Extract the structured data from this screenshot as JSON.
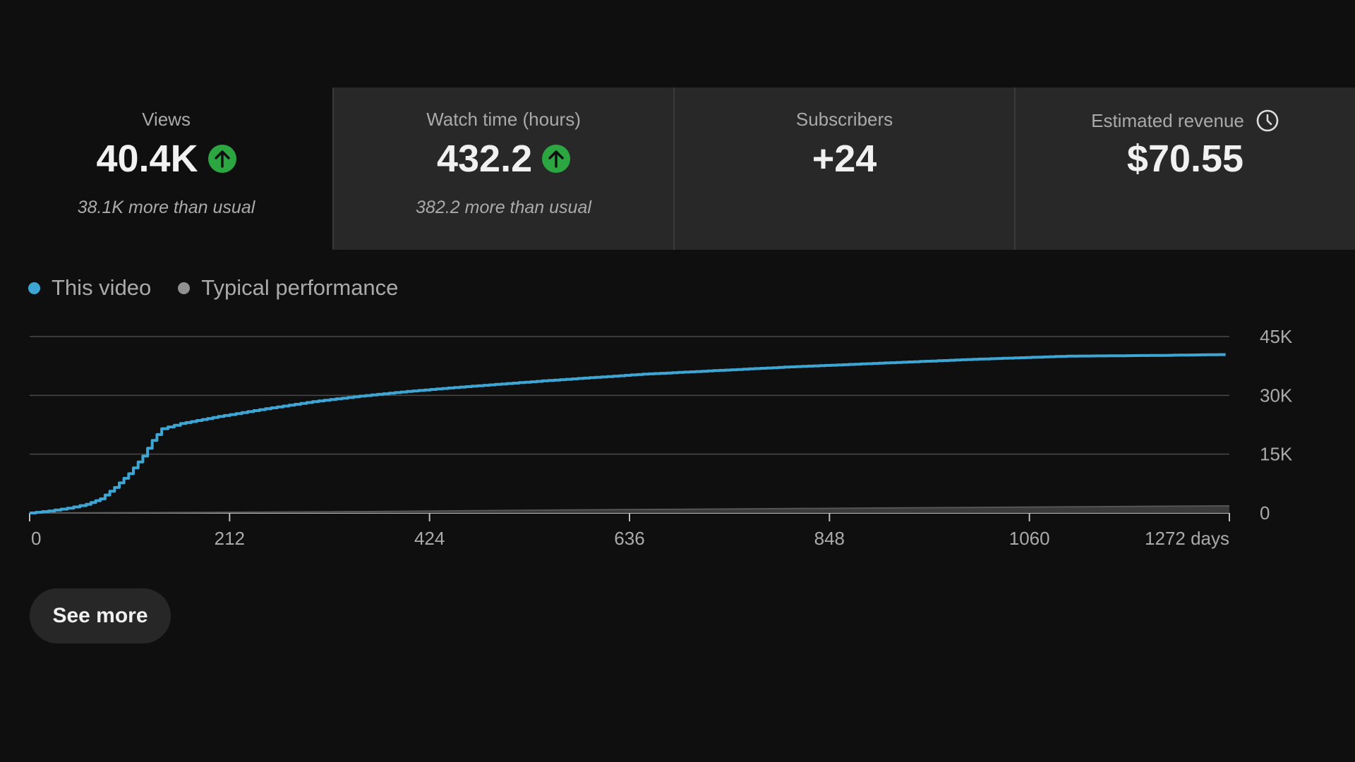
{
  "metrics": [
    {
      "label": "Views",
      "value": "40.4K",
      "note": "38.1K more than usual"
    },
    {
      "label": "Watch time (hours)",
      "value": "432.2",
      "note": "382.2 more than usual"
    },
    {
      "label": "Subscribers",
      "value": "+24",
      "note": ""
    },
    {
      "label": "Estimated revenue",
      "value": "$70.55",
      "note": ""
    }
  ],
  "icons": {
    "trend": "arrow-up-icon",
    "revenue": "clock-icon"
  },
  "colors": {
    "this_video": "#3ea6d4",
    "typical": "#909090",
    "up_badge": "#2ba640"
  },
  "legend": {
    "this_video": "This video",
    "typical": "Typical performance"
  },
  "see_more": "See more",
  "chart_data": {
    "type": "line",
    "x_tick_labels": [
      "0",
      "212",
      "424",
      "636",
      "848",
      "1060",
      "1272 days"
    ],
    "x_ticks": [
      0,
      212,
      424,
      636,
      848,
      1060,
      1272
    ],
    "y_tick_labels": [
      "0",
      "15K",
      "30K",
      "45K"
    ],
    "y_ticks": [
      0,
      15000,
      30000,
      45000
    ],
    "xlim": [
      0,
      1272
    ],
    "ylim": [
      0,
      45000
    ],
    "grid": true,
    "legend_position": "top-left",
    "series": [
      {
        "name": "This video",
        "x": [
          0,
          20,
          40,
          60,
          75,
          90,
          105,
          120,
          130,
          140,
          160,
          200,
          250,
          300,
          350,
          400,
          450,
          500,
          550,
          600,
          650,
          700,
          750,
          800,
          850,
          900,
          950,
          1000,
          1050,
          1100,
          1150,
          1200,
          1260,
          1268
        ],
        "y": [
          0,
          500,
          1200,
          2200,
          3600,
          6500,
          10000,
          14500,
          18500,
          21500,
          22800,
          24600,
          26600,
          28400,
          29800,
          31000,
          32000,
          32900,
          33800,
          34600,
          35400,
          36000,
          36600,
          37200,
          37700,
          38200,
          38700,
          39200,
          39600,
          40000,
          40100,
          40200,
          40400,
          40400
        ]
      },
      {
        "name": "Typical performance",
        "x": [
          0,
          100,
          200,
          300,
          400,
          500,
          600,
          700,
          800,
          900,
          1000,
          1100,
          1200,
          1272
        ],
        "y": [
          0,
          60,
          150,
          280,
          420,
          620,
          800,
          950,
          1100,
          1250,
          1400,
          1550,
          1700,
          1800
        ]
      }
    ]
  }
}
